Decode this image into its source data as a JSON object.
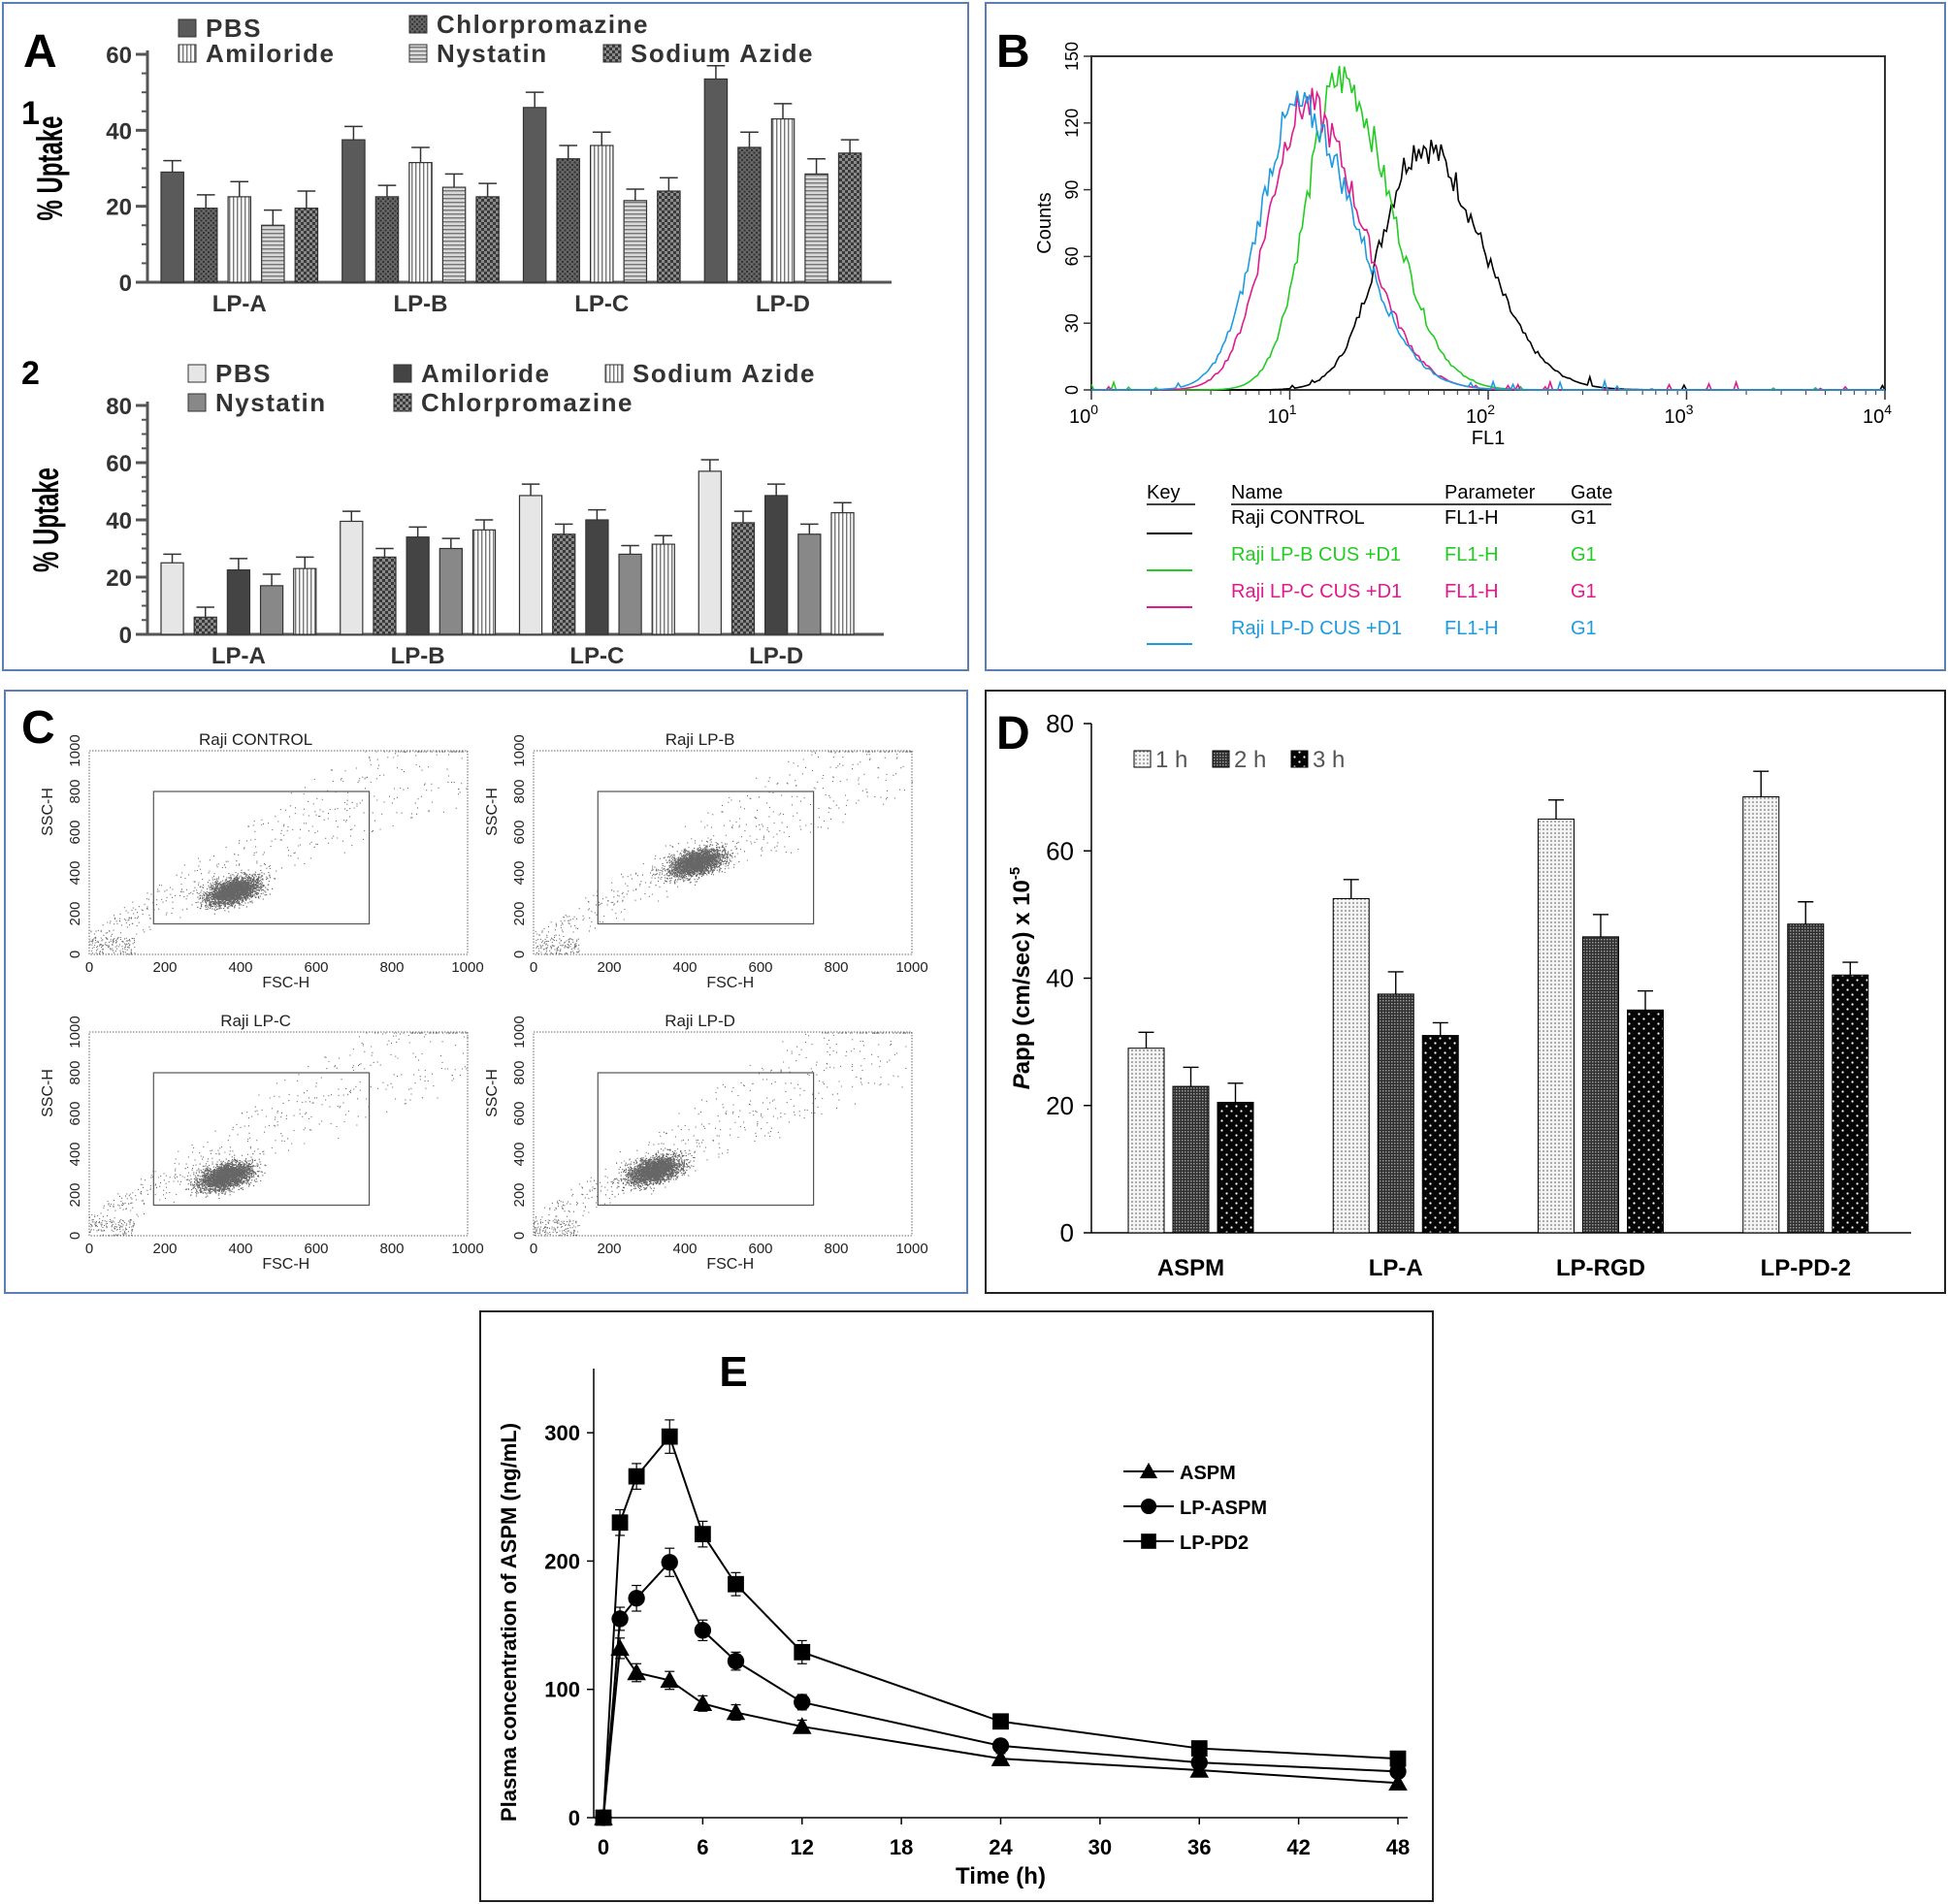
{
  "panel_labels": {
    "A": "A",
    "B": "B",
    "C": "C",
    "D": "D",
    "E": "E"
  },
  "chart_data": [
    {
      "id": "A1",
      "type": "bar",
      "sub_label": "1",
      "ylabel": "% Uptake",
      "ylim": [
        0,
        60
      ],
      "yticks": [
        0,
        20,
        40,
        60
      ],
      "categories": [
        "LP-A",
        "LP-B",
        "LP-C",
        "LP-D"
      ],
      "legend": [
        [
          "PBS",
          "Chlorpromazine"
        ],
        [
          "Amiloride",
          "Nystatin",
          "Sodium Azide"
        ]
      ],
      "series": [
        {
          "name": "PBS",
          "color": "#5a5a5a",
          "pattern": "solid",
          "values": [
            29,
            37.5,
            46,
            53.5
          ],
          "errors": [
            3,
            3.5,
            4,
            3.5
          ]
        },
        {
          "name": "Chlorpromazine",
          "color": "#555555",
          "pattern": "cross",
          "values": [
            19.5,
            22.5,
            32.5,
            35.5
          ],
          "errors": [
            3.5,
            3,
            3.5,
            4
          ]
        },
        {
          "name": "Amiloride",
          "color": "#9a9a9a",
          "pattern": "vlines",
          "values": [
            22.5,
            31.5,
            36,
            43
          ],
          "errors": [
            4,
            4,
            3.5,
            4
          ]
        },
        {
          "name": "Nystatin",
          "color": "#777777",
          "pattern": "hlines",
          "values": [
            15,
            25,
            21.5,
            28.5
          ],
          "errors": [
            4,
            3.5,
            3,
            4
          ]
        },
        {
          "name": "Sodium Azide",
          "color": "#444444",
          "pattern": "check",
          "values": [
            19.5,
            22.5,
            24,
            34
          ],
          "errors": [
            4.5,
            3.5,
            3.5,
            3.5
          ]
        }
      ]
    },
    {
      "id": "A2",
      "type": "bar",
      "sub_label": "2",
      "ylabel": "% Uptake",
      "ylim": [
        0,
        80
      ],
      "yticks": [
        0,
        20,
        40,
        60,
        80
      ],
      "categories": [
        "LP-A",
        "LP-B",
        "LP-C",
        "LP-D"
      ],
      "legend": [
        [
          "PBS",
          "Amiloride",
          "Sodium Azide"
        ],
        [
          "Nystatin",
          "Chlorpromazine"
        ]
      ],
      "series": [
        {
          "name": "PBS",
          "color": "#e6e6e6",
          "pattern": "solid",
          "values": [
            25,
            39.5,
            48.5,
            57
          ],
          "errors": [
            3,
            3.5,
            4,
            4
          ]
        },
        {
          "name": "Chlorpromazine",
          "color": "#555555",
          "pattern": "check",
          "values": [
            6,
            27,
            35,
            39
          ],
          "errors": [
            3.5,
            3,
            3.5,
            4
          ]
        },
        {
          "name": "Amiloride",
          "color": "#444444",
          "pattern": "solid",
          "values": [
            22.5,
            34,
            40,
            48.5
          ],
          "errors": [
            4,
            3.5,
            3.5,
            4
          ]
        },
        {
          "name": "Nystatin",
          "color": "#888888",
          "pattern": "solid",
          "values": [
            17,
            30,
            28,
            35
          ],
          "errors": [
            4,
            3.5,
            3,
            3.5
          ]
        },
        {
          "name": "Sodium Azide",
          "color": "#555555",
          "pattern": "vlines",
          "values": [
            23,
            36.5,
            31.5,
            42.5
          ],
          "errors": [
            4,
            3.5,
            3,
            3.5
          ]
        }
      ]
    },
    {
      "id": "B",
      "type": "line",
      "title": "",
      "xlabel": "FL1",
      "ylabel": "Counts",
      "xscale": "log",
      "xlim": [
        1,
        10000
      ],
      "ylim": [
        0,
        150
      ],
      "yticks": [
        0,
        30,
        60,
        90,
        120,
        150
      ],
      "xticks": [
        {
          "base": "10",
          "exp": "0"
        },
        {
          "base": "10",
          "exp": "1"
        },
        {
          "base": "10",
          "exp": "2"
        },
        {
          "base": "10",
          "exp": "3"
        },
        {
          "base": "10",
          "exp": "4"
        }
      ],
      "key_header": {
        "key": "Key",
        "name": "Name",
        "parameter": "Parameter",
        "gate": "Gate"
      },
      "series": [
        {
          "name": "Raji CONTROL",
          "parameter": "FL1-H",
          "gate": "G1",
          "color": "#000000",
          "peak_x": 46,
          "peak_y": 110,
          "spread": 0.24
        },
        {
          "name": "Raji LP-B CUS +D1",
          "parameter": "FL1-H",
          "gate": "G1",
          "color": "#22cc22",
          "peak_x": 18,
          "peak_y": 140,
          "spread": 0.2
        },
        {
          "name": "Raji LP-C CUS +D1",
          "parameter": "FL1-H",
          "gate": "G1",
          "color": "#e0198c",
          "peak_x": 12,
          "peak_y": 128,
          "spread": 0.22
        },
        {
          "name": "Raji LP-D CUS +D1",
          "parameter": "FL1-H",
          "gate": "G1",
          "color": "#1e9be0",
          "peak_x": 11,
          "peak_y": 127,
          "spread": 0.23
        }
      ]
    },
    {
      "id": "C",
      "type": "scatter",
      "xlabel": "FSC-H",
      "ylabel": "SSC-H",
      "xlim": [
        0,
        1000
      ],
      "ylim": [
        0,
        1000
      ],
      "ticks": [
        0,
        200,
        400,
        600,
        800,
        1000
      ],
      "gate": {
        "x0": 170,
        "x1": 740,
        "y0": 150,
        "y1": 800
      },
      "plots": [
        {
          "title": "Raji CONTROL",
          "center_x": 380,
          "center_y": 310
        },
        {
          "title": "Raji LP-B",
          "center_x": 430,
          "center_y": 450
        },
        {
          "title": "Raji LP-C",
          "center_x": 360,
          "center_y": 290
        },
        {
          "title": "Raji LP-D",
          "center_x": 320,
          "center_y": 320
        }
      ]
    },
    {
      "id": "D",
      "type": "bar",
      "ylabel": "Papp (cm/sec) x 10",
      "ylabel_exp": "-5",
      "ylabel_italic": "P",
      "ylim": [
        0,
        80
      ],
      "yticks": [
        0,
        20,
        40,
        60,
        80
      ],
      "categories": [
        "ASPM",
        "LP-A",
        "LP-RGD",
        "LP-PD-2"
      ],
      "series": [
        {
          "name": "1 h",
          "color": "#dddddd",
          "pattern": "dots",
          "values": [
            29,
            52.5,
            65,
            68.5
          ],
          "errors": [
            2.5,
            3,
            3,
            4
          ]
        },
        {
          "name": "2 h",
          "color": "#555555",
          "pattern": "dense",
          "values": [
            23,
            37.5,
            46.5,
            48.5
          ],
          "errors": [
            3,
            3.5,
            3.5,
            3.5
          ]
        },
        {
          "name": "3 h",
          "color": "#0a0a0a",
          "pattern": "whitedots",
          "values": [
            20.5,
            31,
            35,
            40.5
          ],
          "errors": [
            3,
            2,
            3,
            2
          ]
        }
      ]
    },
    {
      "id": "E",
      "type": "line",
      "xlabel": "Time (h)",
      "ylabel": "Plasma concentration of ASPM (ng/mL)",
      "xlim": [
        0,
        48
      ],
      "xticks": [
        0,
        6,
        12,
        18,
        24,
        30,
        36,
        42,
        48
      ],
      "ylim": [
        0,
        350
      ],
      "yticks": [
        0,
        100,
        200,
        300
      ],
      "x": [
        0,
        1,
        2,
        4,
        6,
        8,
        12,
        24,
        36,
        48
      ],
      "series": [
        {
          "name": "ASPM",
          "marker": "triangle",
          "values": [
            0,
            132,
            113,
            107,
            89,
            82,
            71,
            46,
            37,
            27
          ],
          "errors": [
            0,
            8,
            7,
            7,
            6,
            6,
            5,
            4,
            4,
            4
          ]
        },
        {
          "name": "LP-ASPM",
          "marker": "circle",
          "values": [
            0,
            155,
            171,
            199,
            146,
            122,
            90,
            56,
            43,
            36
          ],
          "errors": [
            0,
            9,
            10,
            11,
            8,
            7,
            6,
            4,
            4,
            4
          ]
        },
        {
          "name": "LP-PD2",
          "marker": "square",
          "values": [
            0,
            230,
            266,
            297,
            221,
            182,
            129,
            75,
            54,
            46
          ],
          "errors": [
            0,
            10,
            10,
            13,
            10,
            9,
            9,
            4,
            4,
            4
          ]
        }
      ]
    }
  ]
}
